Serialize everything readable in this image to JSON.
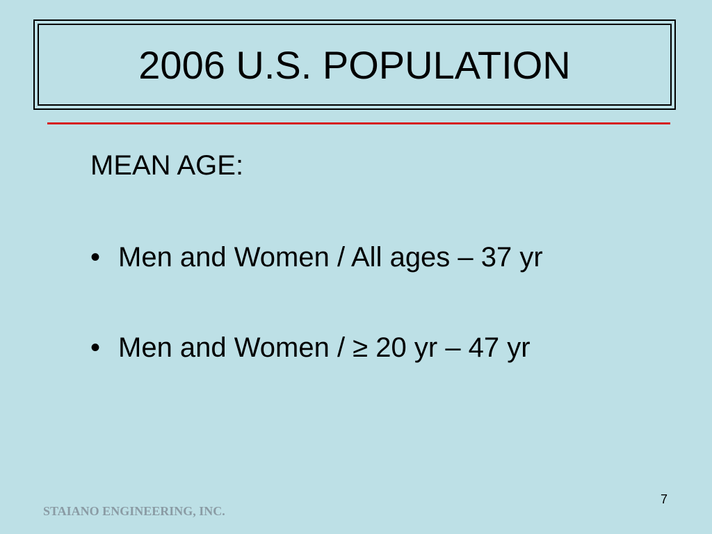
{
  "title": "2006 U.S. POPULATION",
  "heading": "MEAN AGE:",
  "bullets": [
    "Men and Women / All ages – 37 yr",
    "Men and Women / ≥ 20 yr – 47 yr"
  ],
  "page_number": "7",
  "footer": "STAIANO ENGINEERING, INC."
}
